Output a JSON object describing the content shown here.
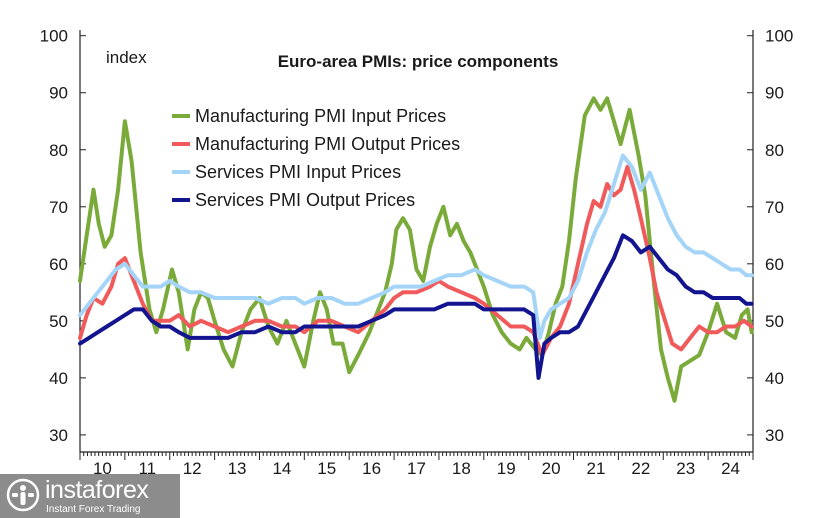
{
  "chart_data": {
    "type": "line",
    "title": "Euro-area PMIs: price components",
    "unit_label": "index",
    "ylim": [
      27,
      101
    ],
    "yticks": [
      30,
      40,
      50,
      60,
      70,
      80,
      90,
      100
    ],
    "xlim": [
      2010.0,
      2025.0
    ],
    "year_labels": [
      "10",
      "11",
      "12",
      "13",
      "14",
      "15",
      "16",
      "17",
      "18",
      "19",
      "20",
      "21",
      "22",
      "23",
      "24"
    ],
    "grid": false,
    "legend_position": "top-left",
    "colors": {
      "mfg_input": "#7aab3a",
      "mfg_output": "#f05a5a",
      "svc_input": "#a4d4f7",
      "svc_output": "#13148f"
    },
    "series": [
      {
        "name": "Manufacturing PMI Input Prices",
        "color_key": "mfg_input",
        "points": [
          [
            2010.0,
            57
          ],
          [
            2010.15,
            65
          ],
          [
            2010.3,
            73
          ],
          [
            2010.42,
            67
          ],
          [
            2010.55,
            63
          ],
          [
            2010.7,
            65
          ],
          [
            2010.85,
            73
          ],
          [
            2011.0,
            85
          ],
          [
            2011.15,
            78
          ],
          [
            2011.35,
            62
          ],
          [
            2011.55,
            52
          ],
          [
            2011.7,
            48
          ],
          [
            2011.85,
            52
          ],
          [
            2012.05,
            59
          ],
          [
            2012.2,
            55
          ],
          [
            2012.4,
            45
          ],
          [
            2012.55,
            52
          ],
          [
            2012.7,
            55
          ],
          [
            2012.85,
            54
          ],
          [
            2013.0,
            50
          ],
          [
            2013.2,
            45
          ],
          [
            2013.4,
            42
          ],
          [
            2013.6,
            48
          ],
          [
            2013.8,
            52
          ],
          [
            2014.0,
            54
          ],
          [
            2014.2,
            49
          ],
          [
            2014.4,
            46
          ],
          [
            2014.6,
            50
          ],
          [
            2014.85,
            45
          ],
          [
            2015.0,
            42
          ],
          [
            2015.2,
            50
          ],
          [
            2015.35,
            55
          ],
          [
            2015.5,
            52
          ],
          [
            2015.65,
            46
          ],
          [
            2015.85,
            46
          ],
          [
            2016.0,
            41
          ],
          [
            2016.2,
            44
          ],
          [
            2016.45,
            48
          ],
          [
            2016.65,
            52
          ],
          [
            2016.8,
            55
          ],
          [
            2016.95,
            60
          ],
          [
            2017.05,
            66
          ],
          [
            2017.2,
            68
          ],
          [
            2017.35,
            66
          ],
          [
            2017.5,
            59
          ],
          [
            2017.65,
            57
          ],
          [
            2017.8,
            63
          ],
          [
            2017.95,
            67
          ],
          [
            2018.1,
            70
          ],
          [
            2018.25,
            65
          ],
          [
            2018.4,
            67
          ],
          [
            2018.55,
            64
          ],
          [
            2018.7,
            62
          ],
          [
            2018.85,
            59
          ],
          [
            2019.0,
            56
          ],
          [
            2019.2,
            51
          ],
          [
            2019.4,
            48
          ],
          [
            2019.6,
            46
          ],
          [
            2019.8,
            45
          ],
          [
            2019.95,
            47
          ],
          [
            2020.15,
            45
          ],
          [
            2020.3,
            44
          ],
          [
            2020.45,
            48
          ],
          [
            2020.6,
            53
          ],
          [
            2020.75,
            56
          ],
          [
            2020.9,
            64
          ],
          [
            2021.05,
            75
          ],
          [
            2021.25,
            86
          ],
          [
            2021.45,
            89
          ],
          [
            2021.6,
            87
          ],
          [
            2021.75,
            89
          ],
          [
            2021.9,
            85
          ],
          [
            2022.05,
            81
          ],
          [
            2022.25,
            87
          ],
          [
            2022.45,
            79
          ],
          [
            2022.6,
            72
          ],
          [
            2022.8,
            56
          ],
          [
            2022.95,
            45
          ],
          [
            2023.1,
            40
          ],
          [
            2023.25,
            36
          ],
          [
            2023.4,
            42
          ],
          [
            2023.6,
            43
          ],
          [
            2023.8,
            44
          ],
          [
            2024.0,
            48
          ],
          [
            2024.2,
            53
          ],
          [
            2024.4,
            48
          ],
          [
            2024.6,
            47
          ],
          [
            2024.75,
            51
          ],
          [
            2024.88,
            52
          ],
          [
            2024.97,
            48
          ]
        ]
      },
      {
        "name": "Manufacturing PMI Output Prices",
        "color_key": "mfg_output",
        "points": [
          [
            2010.0,
            47
          ],
          [
            2010.15,
            51
          ],
          [
            2010.3,
            54
          ],
          [
            2010.5,
            53
          ],
          [
            2010.7,
            56
          ],
          [
            2010.85,
            60
          ],
          [
            2011.0,
            61
          ],
          [
            2011.2,
            57
          ],
          [
            2011.4,
            53
          ],
          [
            2011.6,
            50
          ],
          [
            2011.8,
            50
          ],
          [
            2012.0,
            50
          ],
          [
            2012.2,
            51
          ],
          [
            2012.45,
            49
          ],
          [
            2012.7,
            50
          ],
          [
            2013.0,
            49
          ],
          [
            2013.3,
            48
          ],
          [
            2013.6,
            49
          ],
          [
            2013.9,
            50
          ],
          [
            2014.2,
            50
          ],
          [
            2014.5,
            49
          ],
          [
            2014.8,
            49
          ],
          [
            2015.0,
            48
          ],
          [
            2015.3,
            50
          ],
          [
            2015.6,
            50
          ],
          [
            2015.9,
            49
          ],
          [
            2016.2,
            48
          ],
          [
            2016.5,
            50
          ],
          [
            2016.8,
            52
          ],
          [
            2017.0,
            54
          ],
          [
            2017.2,
            55
          ],
          [
            2017.5,
            55
          ],
          [
            2017.8,
            56
          ],
          [
            2018.0,
            57
          ],
          [
            2018.2,
            56
          ],
          [
            2018.5,
            55
          ],
          [
            2018.8,
            54
          ],
          [
            2019.0,
            53
          ],
          [
            2019.3,
            51
          ],
          [
            2019.6,
            49
          ],
          [
            2019.9,
            49
          ],
          [
            2020.1,
            48
          ],
          [
            2020.3,
            44
          ],
          [
            2020.5,
            47
          ],
          [
            2020.7,
            49
          ],
          [
            2020.9,
            53
          ],
          [
            2021.1,
            60
          ],
          [
            2021.3,
            67
          ],
          [
            2021.45,
            71
          ],
          [
            2021.6,
            70
          ],
          [
            2021.75,
            74
          ],
          [
            2021.9,
            72
          ],
          [
            2022.05,
            73
          ],
          [
            2022.2,
            77
          ],
          [
            2022.35,
            73
          ],
          [
            2022.5,
            68
          ],
          [
            2022.7,
            61
          ],
          [
            2022.85,
            55
          ],
          [
            2023.0,
            51
          ],
          [
            2023.2,
            46
          ],
          [
            2023.4,
            45
          ],
          [
            2023.6,
            47
          ],
          [
            2023.8,
            49
          ],
          [
            2024.0,
            48
          ],
          [
            2024.2,
            48
          ],
          [
            2024.4,
            49
          ],
          [
            2024.6,
            49
          ],
          [
            2024.8,
            50
          ],
          [
            2024.97,
            49
          ]
        ]
      },
      {
        "name": "Services PMI Input Prices",
        "color_key": "svc_input",
        "points": [
          [
            2010.0,
            51
          ],
          [
            2010.2,
            53
          ],
          [
            2010.4,
            55
          ],
          [
            2010.6,
            57
          ],
          [
            2010.8,
            59
          ],
          [
            2011.0,
            60
          ],
          [
            2011.2,
            58
          ],
          [
            2011.4,
            56
          ],
          [
            2011.6,
            56
          ],
          [
            2011.8,
            56
          ],
          [
            2012.0,
            57
          ],
          [
            2012.2,
            56
          ],
          [
            2012.45,
            55
          ],
          [
            2012.7,
            55
          ],
          [
            2013.0,
            54
          ],
          [
            2013.3,
            54
          ],
          [
            2013.6,
            54
          ],
          [
            2013.9,
            54
          ],
          [
            2014.2,
            53
          ],
          [
            2014.5,
            54
          ],
          [
            2014.8,
            54
          ],
          [
            2015.0,
            53
          ],
          [
            2015.3,
            54
          ],
          [
            2015.6,
            54
          ],
          [
            2015.9,
            53
          ],
          [
            2016.2,
            53
          ],
          [
            2016.5,
            54
          ],
          [
            2016.8,
            55
          ],
          [
            2017.0,
            56
          ],
          [
            2017.3,
            56
          ],
          [
            2017.6,
            56
          ],
          [
            2017.9,
            57
          ],
          [
            2018.2,
            58
          ],
          [
            2018.5,
            58
          ],
          [
            2018.8,
            59
          ],
          [
            2019.0,
            58
          ],
          [
            2019.3,
            57
          ],
          [
            2019.6,
            56
          ],
          [
            2019.9,
            56
          ],
          [
            2020.1,
            55
          ],
          [
            2020.25,
            47
          ],
          [
            2020.35,
            50
          ],
          [
            2020.5,
            52
          ],
          [
            2020.7,
            53
          ],
          [
            2020.9,
            54
          ],
          [
            2021.1,
            57
          ],
          [
            2021.3,
            62
          ],
          [
            2021.5,
            66
          ],
          [
            2021.7,
            69
          ],
          [
            2021.9,
            74
          ],
          [
            2022.1,
            79
          ],
          [
            2022.3,
            77
          ],
          [
            2022.5,
            73
          ],
          [
            2022.7,
            76
          ],
          [
            2022.9,
            72
          ],
          [
            2023.1,
            68
          ],
          [
            2023.3,
            65
          ],
          [
            2023.5,
            63
          ],
          [
            2023.7,
            62
          ],
          [
            2023.9,
            62
          ],
          [
            2024.1,
            61
          ],
          [
            2024.3,
            60
          ],
          [
            2024.5,
            59
          ],
          [
            2024.7,
            59
          ],
          [
            2024.85,
            58
          ],
          [
            2024.97,
            58
          ]
        ]
      },
      {
        "name": "Services PMI Output Prices",
        "color_key": "svc_output",
        "points": [
          [
            2010.0,
            46
          ],
          [
            2010.2,
            47
          ],
          [
            2010.4,
            48
          ],
          [
            2010.6,
            49
          ],
          [
            2010.8,
            50
          ],
          [
            2011.0,
            51
          ],
          [
            2011.2,
            52
          ],
          [
            2011.4,
            52
          ],
          [
            2011.6,
            50
          ],
          [
            2011.8,
            49
          ],
          [
            2012.0,
            49
          ],
          [
            2012.2,
            48
          ],
          [
            2012.45,
            47
          ],
          [
            2012.7,
            47
          ],
          [
            2013.0,
            47
          ],
          [
            2013.3,
            47
          ],
          [
            2013.6,
            48
          ],
          [
            2013.9,
            48
          ],
          [
            2014.2,
            49
          ],
          [
            2014.5,
            48
          ],
          [
            2014.8,
            48
          ],
          [
            2015.0,
            49
          ],
          [
            2015.3,
            49
          ],
          [
            2015.6,
            49
          ],
          [
            2015.9,
            49
          ],
          [
            2016.2,
            49
          ],
          [
            2016.5,
            50
          ],
          [
            2016.8,
            51
          ],
          [
            2017.0,
            52
          ],
          [
            2017.3,
            52
          ],
          [
            2017.6,
            52
          ],
          [
            2017.9,
            52
          ],
          [
            2018.2,
            53
          ],
          [
            2018.5,
            53
          ],
          [
            2018.8,
            53
          ],
          [
            2019.0,
            52
          ],
          [
            2019.3,
            52
          ],
          [
            2019.6,
            52
          ],
          [
            2019.9,
            52
          ],
          [
            2020.1,
            51
          ],
          [
            2020.22,
            40
          ],
          [
            2020.35,
            46
          ],
          [
            2020.5,
            47
          ],
          [
            2020.7,
            48
          ],
          [
            2020.9,
            48
          ],
          [
            2021.1,
            49
          ],
          [
            2021.3,
            52
          ],
          [
            2021.5,
            55
          ],
          [
            2021.7,
            58
          ],
          [
            2021.9,
            61
          ],
          [
            2022.1,
            65
          ],
          [
            2022.3,
            64
          ],
          [
            2022.5,
            62
          ],
          [
            2022.7,
            63
          ],
          [
            2022.9,
            61
          ],
          [
            2023.1,
            59
          ],
          [
            2023.3,
            58
          ],
          [
            2023.5,
            56
          ],
          [
            2023.7,
            55
          ],
          [
            2023.9,
            55
          ],
          [
            2024.1,
            54
          ],
          [
            2024.3,
            54
          ],
          [
            2024.5,
            54
          ],
          [
            2024.7,
            54
          ],
          [
            2024.85,
            53
          ],
          [
            2024.97,
            53
          ]
        ]
      }
    ]
  },
  "watermark": {
    "brand": "instaforex",
    "tagline": "Instant Forex Trading"
  }
}
